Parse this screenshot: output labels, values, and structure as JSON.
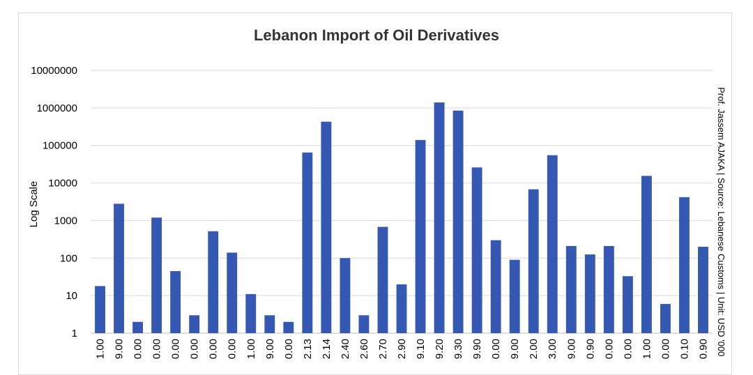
{
  "chart_data": {
    "type": "bar",
    "title": "Lebanon Import of Oil Derivatives",
    "xlabel": "",
    "ylabel": "Log Scale",
    "yscale": "log",
    "ylim": [
      1,
      10000000
    ],
    "yticks": [
      "1",
      "10",
      "100",
      "1000",
      "10000",
      "100000",
      "1000000",
      "10000000"
    ],
    "grid": true,
    "legend": "none",
    "side_note": "Prof. Jassem AJAKA | Source: Lebanese Customs | Unit: USD '000",
    "bar_color": "#3558b2",
    "categories": [
      "1.00",
      "9.00",
      "0.00",
      "0.00",
      "0.00",
      "0.00",
      "0.00",
      "0.00",
      "1.00",
      "9.00",
      "0.00",
      "2.13",
      "2.14",
      "2.40",
      "2.60",
      "2.70",
      "2.90",
      "9.10",
      "9.20",
      "9.30",
      "9.90",
      "0.00",
      "9.00",
      "2.00",
      "3.00",
      "9.00",
      "0.90",
      "0.00",
      "0.00",
      "1.00",
      "0.00",
      "0.10",
      "0.90"
    ],
    "values": [
      18,
      2800,
      2,
      1200,
      45,
      3,
      520,
      140,
      11,
      3,
      2,
      65000,
      430000,
      100,
      3,
      680,
      20,
      140000,
      1400000,
      850000,
      26000,
      300,
      90,
      6800,
      55000,
      210,
      125,
      210,
      33,
      15500,
      6,
      4200,
      200
    ]
  }
}
